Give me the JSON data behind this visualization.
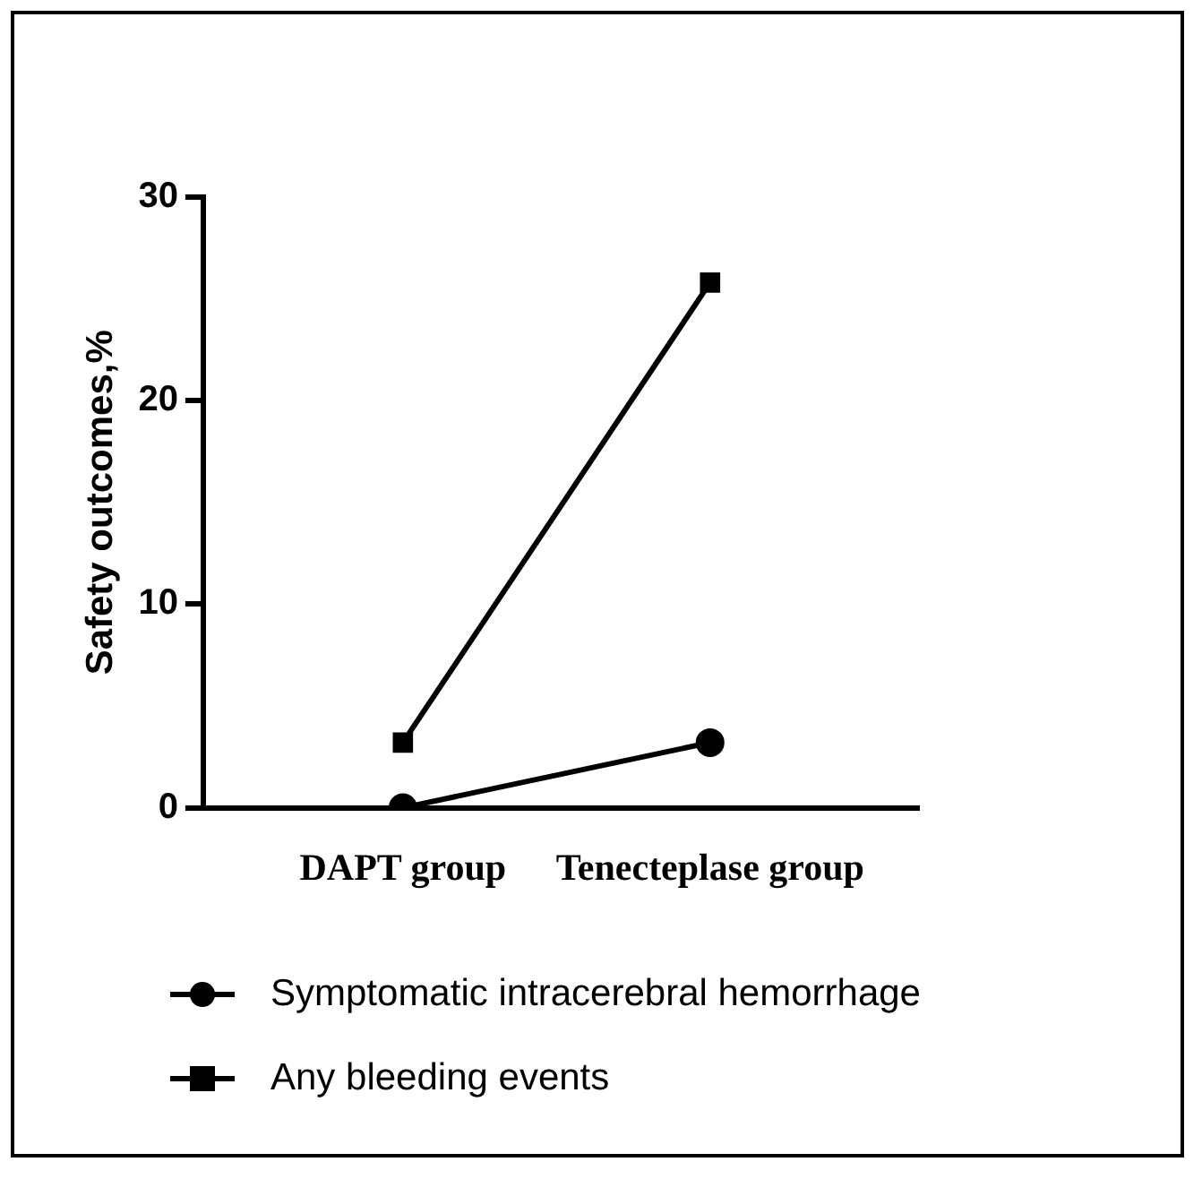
{
  "chart_data": {
    "type": "line",
    "ylabel": "Safety outcomes,%",
    "categories": [
      "DAPT group",
      "Tenecteplase group"
    ],
    "series": [
      {
        "name": "Symptomatic intracerebral hemorrhage",
        "color": "#000000",
        "marker": "circle",
        "values": [
          0,
          3.2
        ]
      },
      {
        "name": "Any bleeding events",
        "color": "#000000",
        "marker": "square",
        "values": [
          3.2,
          25.8
        ]
      }
    ],
    "ylim": [
      0,
      30
    ],
    "yticks": [
      0,
      10,
      20,
      30
    ],
    "grid": false,
    "legend": "bottom",
    "line_style": "solid"
  }
}
